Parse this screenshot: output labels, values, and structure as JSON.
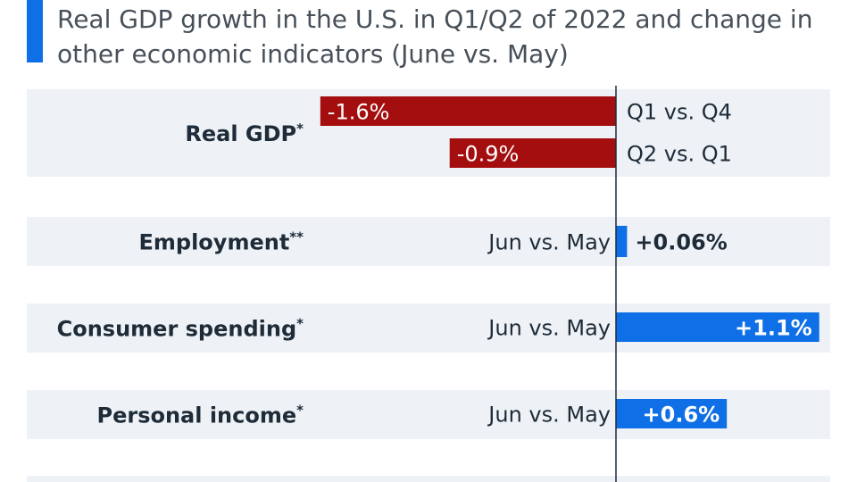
{
  "title": "Real GDP growth in the U.S. in Q1/Q2 of 2022 and change in other economic indicators (June vs. May)",
  "colors": {
    "negative": "#a40e0e",
    "positive": "#0f6fe6",
    "row_background": "#eef2f6",
    "accent": "#0f6fe6",
    "text": "#1e2b38",
    "axis": "#1e2b38"
  },
  "chart_data": {
    "type": "bar",
    "orientation": "horizontal",
    "categories": [
      "Real GDP*",
      "Employment**",
      "Consumer spending*",
      "Personal income*"
    ],
    "bars": [
      {
        "category": "Real GDP*",
        "comparison": "Q1 vs. Q4",
        "value": -1.6,
        "label": "-1.6%"
      },
      {
        "category": "Real GDP*",
        "comparison": "Q2 vs. Q1",
        "value": -0.9,
        "label": "-0.9%"
      },
      {
        "category": "Employment**",
        "comparison": "Jun vs. May",
        "value": 0.06,
        "label": "+0.06%"
      },
      {
        "category": "Consumer spending*",
        "comparison": "Jun vs. May",
        "value": 1.1,
        "label": "+1.1%"
      },
      {
        "category": "Personal income*",
        "comparison": "Jun vs. May",
        "value": 0.6,
        "label": "+0.6%"
      }
    ],
    "unit": "%",
    "baseline": 0
  }
}
